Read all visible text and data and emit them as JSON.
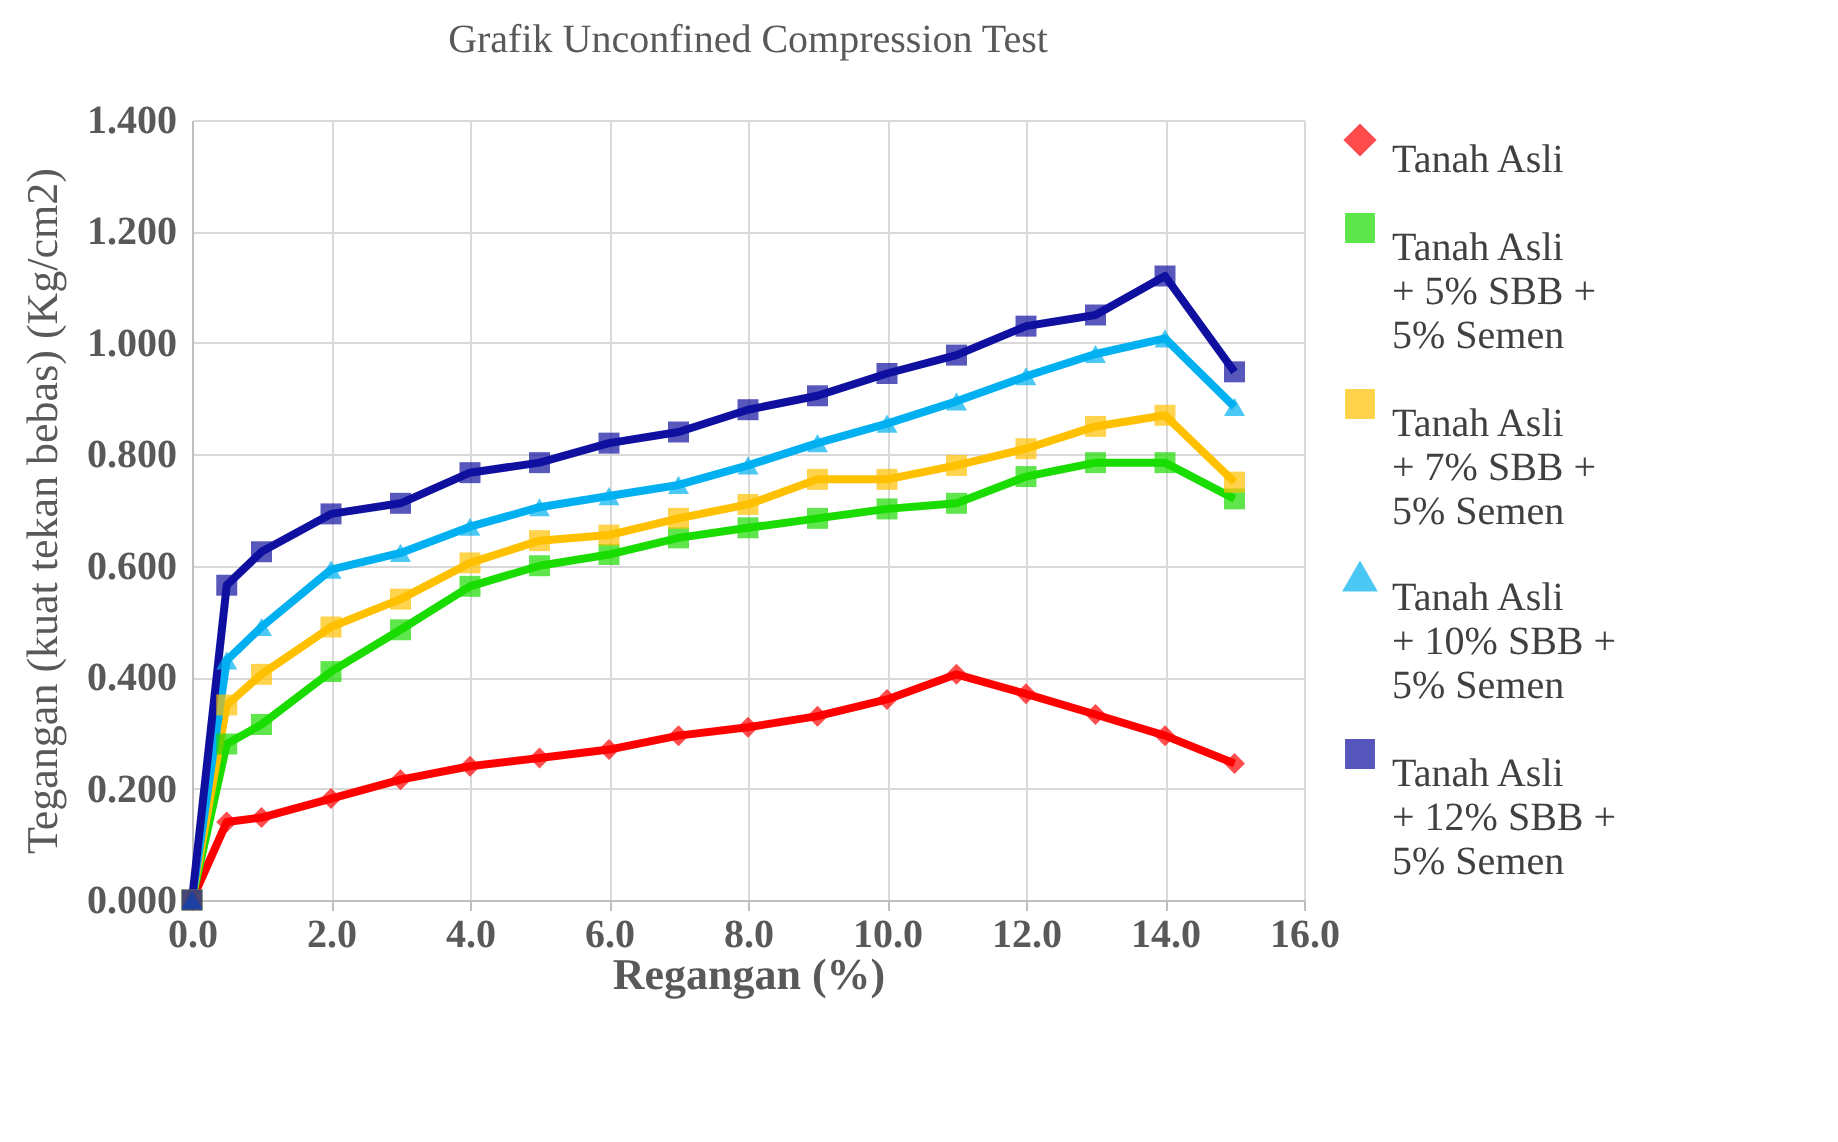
{
  "chart_data": {
    "type": "line",
    "title": "Grafik Unconfined Compression Test",
    "xlabel": "Regangan (%)",
    "ylabel": "Tegangan (kuat tekan bebas) (Kg/cm2)",
    "x": [
      0,
      0.5,
      1,
      2,
      3,
      4,
      5,
      6,
      7,
      8,
      9,
      10,
      11,
      12,
      13,
      14,
      15
    ],
    "series": [
      {
        "name": "Tanah Asli",
        "color": "#ff0000",
        "marker": "diamond",
        "values": [
          0,
          0.14,
          0.148,
          0.182,
          0.216,
          0.24,
          0.255,
          0.27,
          0.295,
          0.31,
          0.33,
          0.36,
          0.405,
          0.37,
          0.333,
          0.295,
          0.245
        ]
      },
      {
        "name": "Tanah Asli + 5% SBB + 5% Semen",
        "color": "#1adc00",
        "marker": "square",
        "values": [
          0,
          0.28,
          0.315,
          0.41,
          0.485,
          0.563,
          0.6,
          0.62,
          0.65,
          0.668,
          0.685,
          0.702,
          0.712,
          0.76,
          0.785,
          0.785,
          0.72
        ]
      },
      {
        "name": "Tanah Asli + 7% SBB + 5% Semen",
        "color": "#ffc000",
        "marker": "square",
        "values": [
          0,
          0.35,
          0.405,
          0.49,
          0.54,
          0.605,
          0.645,
          0.655,
          0.685,
          0.71,
          0.755,
          0.755,
          0.78,
          0.81,
          0.85,
          0.87,
          0.75
        ]
      },
      {
        "name": "Tanah Asli + 10% SBB + 5% Semen",
        "color": "#00b0f0",
        "marker": "triangle",
        "values": [
          0,
          0.43,
          0.49,
          0.593,
          0.623,
          0.67,
          0.705,
          0.725,
          0.745,
          0.78,
          0.82,
          0.855,
          0.895,
          0.94,
          0.98,
          1.008,
          0.885
        ]
      },
      {
        "name": "Tanah Asli + 12% SBB + 5% Semen",
        "color": "#1010a0",
        "marker": "square",
        "values": [
          0,
          0.565,
          0.625,
          0.693,
          0.712,
          0.767,
          0.785,
          0.82,
          0.84,
          0.88,
          0.905,
          0.945,
          0.978,
          1.03,
          1.05,
          1.12,
          0.948
        ]
      }
    ],
    "xlim": [
      0,
      16
    ],
    "xticks": [
      {
        "value": 0,
        "label": "0.0"
      },
      {
        "value": 2,
        "label": "2.0"
      },
      {
        "value": 4,
        "label": "4.0"
      },
      {
        "value": 6,
        "label": "6.0"
      },
      {
        "value": 8,
        "label": "8.0"
      },
      {
        "value": 10,
        "label": "10.0"
      },
      {
        "value": 12,
        "label": "12.0"
      },
      {
        "value": 14,
        "label": "14.0"
      },
      {
        "value": 16,
        "label": "16.0"
      }
    ],
    "ylim": [
      0,
      1.4
    ],
    "yticks": [
      {
        "value": 0,
        "label": "0.000"
      },
      {
        "value": 0.2,
        "label": "0.200"
      },
      {
        "value": 0.4,
        "label": "0.400"
      },
      {
        "value": 0.6,
        "label": "0.600"
      },
      {
        "value": 0.8,
        "label": "0.800"
      },
      {
        "value": 1,
        "label": "1.000"
      },
      {
        "value": 1.2,
        "label": "1.200"
      },
      {
        "value": 1.4,
        "label": "1.400"
      }
    ],
    "grid": true,
    "legend": "right",
    "line_style": "solid"
  }
}
